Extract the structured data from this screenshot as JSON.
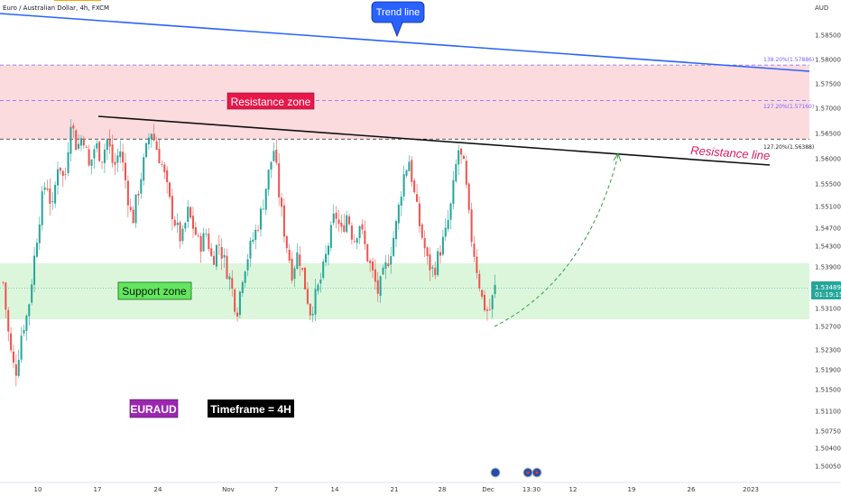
{
  "header": {
    "title": "Euro / Australian Dollar, 4h, FXCM",
    "currency": "AUD"
  },
  "price_tag": {
    "price": "1.53489",
    "countdown": "01:19:15",
    "color": "#26a69a"
  },
  "annotations": {
    "trend_line": "Trend line",
    "resistance_zone": "Resistance zone",
    "resistance_line": "Resistance line",
    "support_zone": "Support zone",
    "symbol": "EURAUD",
    "timeframe": "Timeframe = 4H"
  },
  "fib_levels": [
    {
      "label": "138.20%(1.57886)",
      "value": 1.57886
    },
    {
      "label": "127.20%(1.57160)",
      "value": 1.5716
    },
    {
      "label": "127.20%(1.56388)",
      "value": 1.56388
    }
  ],
  "colors": {
    "up": "#26a69a",
    "down": "#ef5350",
    "trend": "#2962ff",
    "resistance_fill": "#fbd5d8",
    "support_fill": "#d6f5d6",
    "fib": "#7b61ff",
    "resistance_text": "#d81b60"
  },
  "chart_data": {
    "type": "candlestick",
    "title": "Euro / Australian Dollar, 4h, FXCM",
    "y_ticks": [
      "1.58500",
      "1.58000",
      "1.57500",
      "1.57000",
      "1.56500",
      "1.56000",
      "1.55500",
      "1.55100",
      "1.54700",
      "1.54300",
      "1.53900",
      "1.53100",
      "1.52700",
      "1.52300",
      "1.51900",
      "1.51500",
      "1.51100",
      "1.50750",
      "1.50400",
      "1.50050"
    ],
    "x_ticks": [
      "10",
      "17",
      "24",
      "Nov",
      "7",
      "14",
      "21",
      "28",
      "Dec",
      "13:30",
      "12",
      "19",
      "26",
      "2023"
    ],
    "ylim": [
      1.5,
      1.59
    ],
    "resistance_zone": [
      1.56388,
      1.57886
    ],
    "support_zone": [
      1.5286,
      1.5397
    ],
    "current_price": 1.53489,
    "trend_line": {
      "start": 1.59,
      "end": 1.5772
    },
    "resistance_line": {
      "start": 1.5689,
      "end": 1.5592
    },
    "forecast": {
      "from": 1.5275,
      "to": 1.5615
    },
    "close_path": [
      1.536,
      1.524,
      1.518,
      1.526,
      1.53,
      1.54,
      1.55,
      1.556,
      1.55,
      1.56,
      1.555,
      1.568,
      1.562,
      1.565,
      1.558,
      1.563,
      1.56,
      1.564,
      1.558,
      1.562,
      1.555,
      1.548,
      1.554,
      1.56,
      1.566,
      1.562,
      1.558,
      1.552,
      1.548,
      1.544,
      1.55,
      1.547,
      1.543,
      1.546,
      1.54,
      1.544,
      1.54,
      1.536,
      1.53,
      1.538,
      1.542,
      1.546,
      1.55,
      1.556,
      1.562,
      1.552,
      1.544,
      1.538,
      1.542,
      1.536,
      1.53,
      1.534,
      1.538,
      1.544,
      1.55,
      1.546,
      1.55,
      1.544,
      1.548,
      1.542,
      1.538,
      1.534,
      1.538,
      1.542,
      1.548,
      1.556,
      1.56,
      1.552,
      1.546,
      1.54,
      1.538,
      1.542,
      1.546,
      1.552,
      1.562,
      1.558,
      1.546,
      1.539,
      1.532,
      1.53,
      1.5349
    ]
  }
}
